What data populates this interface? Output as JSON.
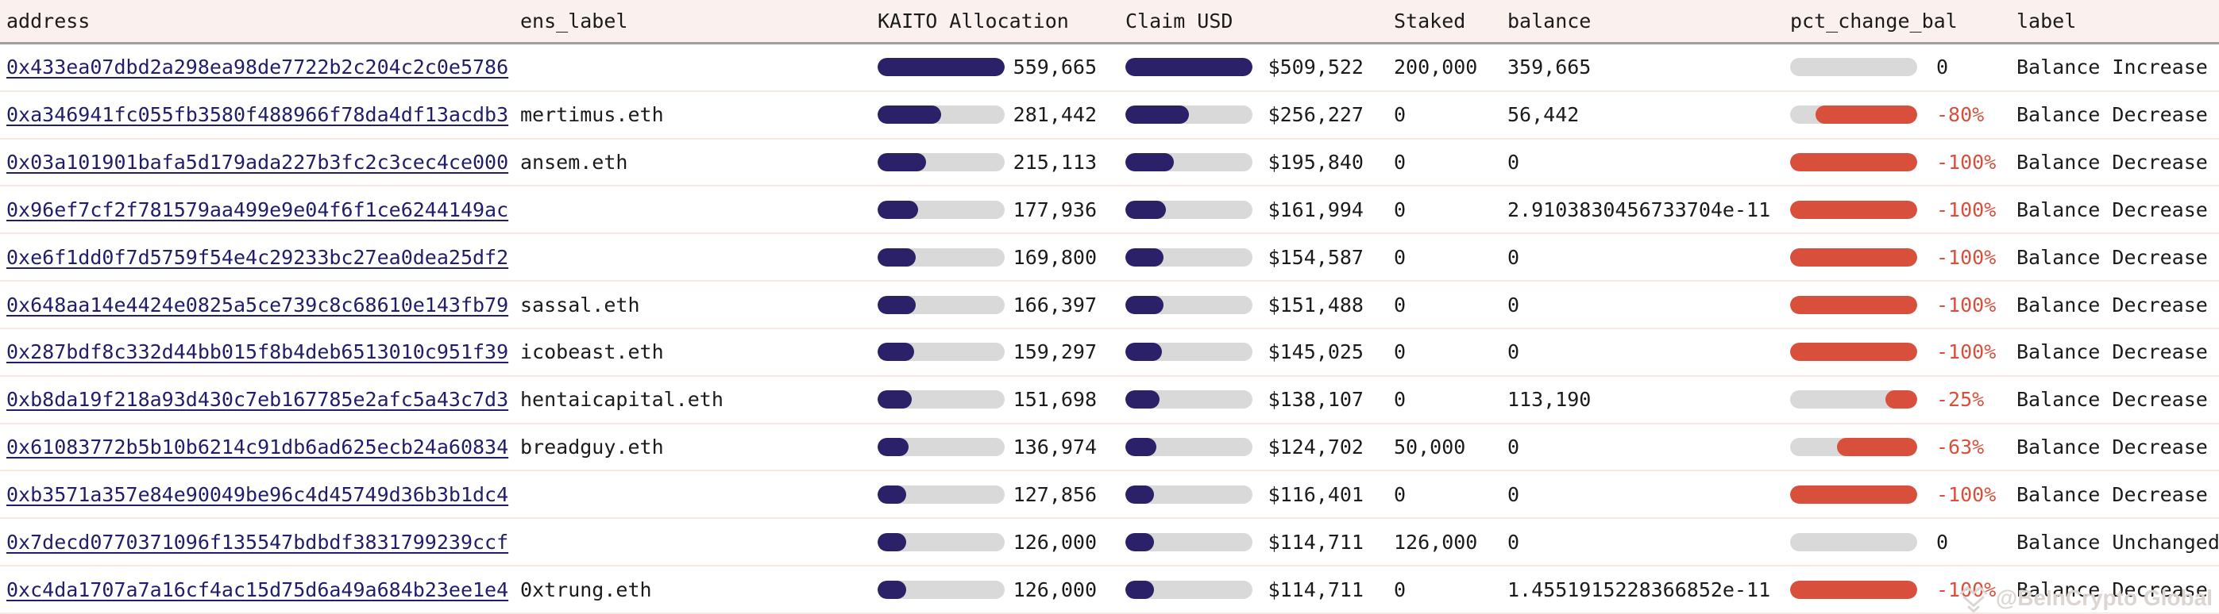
{
  "table": {
    "columns": [
      {
        "key": "address",
        "label": "address"
      },
      {
        "key": "ens_label",
        "label": "ens_label"
      },
      {
        "key": "kaito",
        "label": "KAITO Allocation"
      },
      {
        "key": "claim",
        "label": "Claim USD"
      },
      {
        "key": "staked",
        "label": "Staked"
      },
      {
        "key": "balance",
        "label": "balance"
      },
      {
        "key": "pct",
        "label": "pct_change_bal"
      },
      {
        "key": "label",
        "label": "label"
      }
    ],
    "rows": [
      {
        "address": "0x433ea07dbd2a298ea98de7722b2c204c2c0e5786",
        "ens_label": "",
        "kaito_allocation": "559,665",
        "kaito_fill_pct": 100,
        "claim_usd": "$509,522",
        "claim_fill_pct": 100,
        "staked": "200,000",
        "balance": "359,665",
        "pct_change_bal": "0",
        "pct_fill_pct": 0,
        "label": "Balance Increase"
      },
      {
        "address": "0xa346941fc055fb3580f488966f78da4df13acdb3",
        "ens_label": "mertimus.eth",
        "kaito_allocation": "281,442",
        "kaito_fill_pct": 50.3,
        "claim_usd": "$256,227",
        "claim_fill_pct": 50.3,
        "staked": "0",
        "balance": "56,442",
        "pct_change_bal": "-80%",
        "pct_fill_pct": 80,
        "label": "Balance Decrease"
      },
      {
        "address": "0x03a101901bafa5d179ada227b3fc2c3cec4ce000",
        "ens_label": "ansem.eth",
        "kaito_allocation": "215,113",
        "kaito_fill_pct": 38.4,
        "claim_usd": "$195,840",
        "claim_fill_pct": 38.4,
        "staked": "0",
        "balance": "0",
        "pct_change_bal": "-100%",
        "pct_fill_pct": 100,
        "label": "Balance Decrease"
      },
      {
        "address": "0x96ef7cf2f781579aa499e9e04f6f1ce6244149ac",
        "ens_label": "",
        "kaito_allocation": "177,936",
        "kaito_fill_pct": 31.8,
        "claim_usd": "$161,994",
        "claim_fill_pct": 31.8,
        "staked": "0",
        "balance": "2.9103830456733704e-11",
        "pct_change_bal": "-100%",
        "pct_fill_pct": 100,
        "label": "Balance Decrease"
      },
      {
        "address": "0xe6f1dd0f7d5759f54e4c29233bc27ea0dea25df2",
        "ens_label": "",
        "kaito_allocation": "169,800",
        "kaito_fill_pct": 30.3,
        "claim_usd": "$154,587",
        "claim_fill_pct": 30.3,
        "staked": "0",
        "balance": "0",
        "pct_change_bal": "-100%",
        "pct_fill_pct": 100,
        "label": "Balance Decrease"
      },
      {
        "address": "0x648aa14e4424e0825a5ce739c8c68610e143fb79",
        "ens_label": "sassal.eth",
        "kaito_allocation": "166,397",
        "kaito_fill_pct": 29.7,
        "claim_usd": "$151,488",
        "claim_fill_pct": 29.7,
        "staked": "0",
        "balance": "0",
        "pct_change_bal": "-100%",
        "pct_fill_pct": 100,
        "label": "Balance Decrease"
      },
      {
        "address": "0x287bdf8c332d44bb015f8b4deb6513010c951f39",
        "ens_label": "icobeast.eth",
        "kaito_allocation": "159,297",
        "kaito_fill_pct": 28.5,
        "claim_usd": "$145,025",
        "claim_fill_pct": 28.5,
        "staked": "0",
        "balance": "0",
        "pct_change_bal": "-100%",
        "pct_fill_pct": 100,
        "label": "Balance Decrease"
      },
      {
        "address": "0xb8da19f218a93d430c7eb167785e2afc5a43c7d3",
        "ens_label": "hentaicapital.eth",
        "kaito_allocation": "151,698",
        "kaito_fill_pct": 27.1,
        "claim_usd": "$138,107",
        "claim_fill_pct": 27.1,
        "staked": "0",
        "balance": "113,190",
        "pct_change_bal": "-25%",
        "pct_fill_pct": 25,
        "label": "Balance Decrease"
      },
      {
        "address": "0x61083772b5b10b6214c91db6ad625ecb24a60834",
        "ens_label": "breadguy.eth",
        "kaito_allocation": "136,974",
        "kaito_fill_pct": 24.5,
        "claim_usd": "$124,702",
        "claim_fill_pct": 24.5,
        "staked": "50,000",
        "balance": "0",
        "pct_change_bal": "-63%",
        "pct_fill_pct": 63,
        "label": "Balance Decrease"
      },
      {
        "address": "0xb3571a357e84e90049be96c4d45749d36b3b1dc4",
        "ens_label": "",
        "kaito_allocation": "127,856",
        "kaito_fill_pct": 22.8,
        "claim_usd": "$116,401",
        "claim_fill_pct": 22.8,
        "staked": "0",
        "balance": "0",
        "pct_change_bal": "-100%",
        "pct_fill_pct": 100,
        "label": "Balance Decrease"
      },
      {
        "address": "0x7decd0770371096f135547bdbdf3831799239ccf",
        "ens_label": "",
        "kaito_allocation": "126,000",
        "kaito_fill_pct": 22.5,
        "claim_usd": "$114,711",
        "claim_fill_pct": 22.5,
        "staked": "126,000",
        "balance": "0",
        "pct_change_bal": "0",
        "pct_fill_pct": 0,
        "label": "Balance Unchanged"
      },
      {
        "address": "0xc4da1707a7a16cf4ac15d75d6a49a684b23ee1e4",
        "ens_label": "0xtrung.eth",
        "kaito_allocation": "126,000",
        "kaito_fill_pct": 22.5,
        "claim_usd": "$114,711",
        "claim_fill_pct": 22.5,
        "staked": "0",
        "balance": "1.4551915228366852e-11",
        "pct_change_bal": "-100%",
        "pct_fill_pct": 100,
        "label": "Balance Decrease"
      }
    ]
  },
  "colors": {
    "header_bg": "#faf0ed",
    "header_border": "#9e9e9e",
    "row_separator": "#f9e7e2",
    "bar_navy": "#2a2168",
    "bar_red": "#d8503c",
    "bar_track": "#d9d9d9",
    "link": "#201e69",
    "text": "#1b1b1b",
    "negative_text": "#d8503c",
    "watermark": "#dcd5d2"
  },
  "watermark": {
    "text": "@BeInCrypto Global"
  }
}
